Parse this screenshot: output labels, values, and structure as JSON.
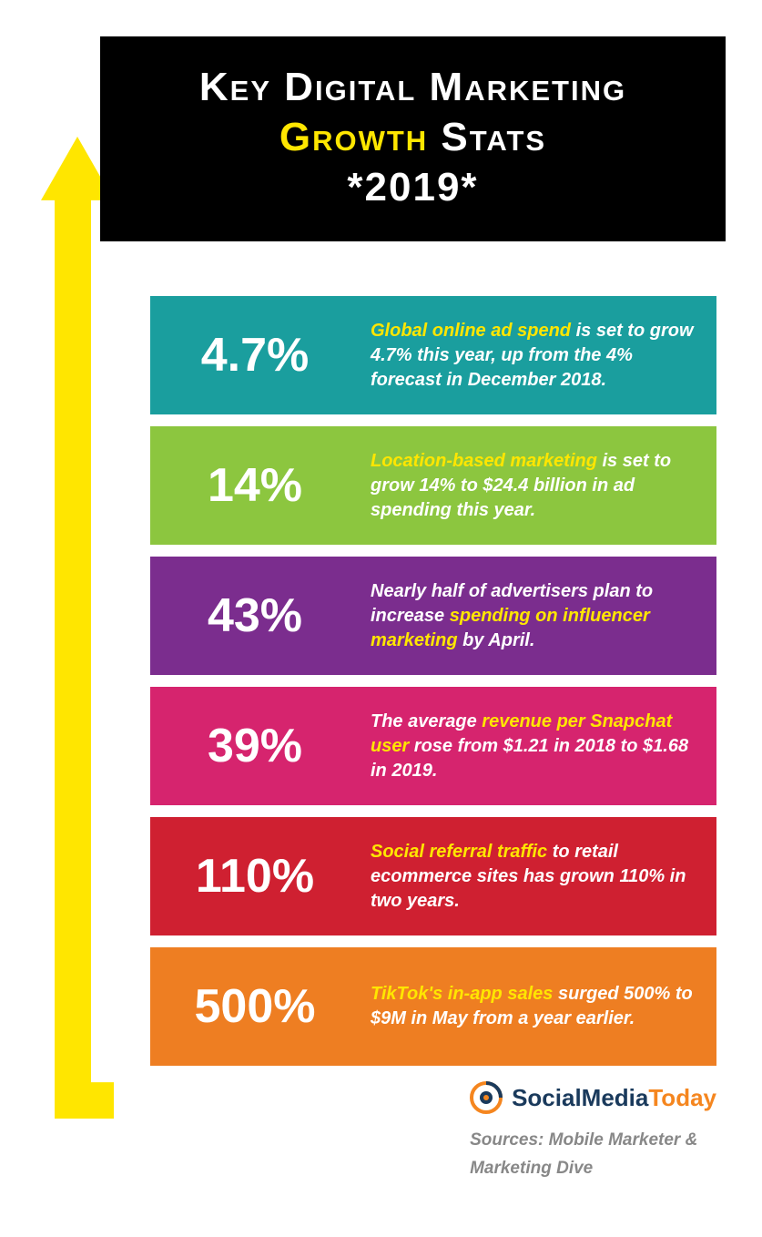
{
  "header": {
    "line1_pre": "Key Digital Marketing",
    "line2_highlight": "Growth",
    "line2_post": " Stats",
    "line3": "*2019*",
    "bg_color": "#000000",
    "text_color": "#ffffff",
    "highlight_color": "#ffe600",
    "font_size": 44
  },
  "arrow": {
    "color": "#ffe600"
  },
  "stats": [
    {
      "percent": "4.7%",
      "desc_pre": "",
      "desc_hl": "Global online ad spend",
      "desc_post": " is set to grow 4.7% this year, up from the 4% forecast in December 2018.",
      "bg_color": "#1a9e9e"
    },
    {
      "percent": "14%",
      "desc_pre": "",
      "desc_hl": "Location-based marketing",
      "desc_post": " is set to grow 14% to $24.4 billion in ad spending this year.",
      "bg_color": "#8cc63f"
    },
    {
      "percent": "43%",
      "desc_pre": "Nearly half of advertisers plan to increase ",
      "desc_hl": "spending on influencer marketing",
      "desc_post": " by April.",
      "bg_color": "#7b2d8e"
    },
    {
      "percent": "39%",
      "desc_pre": "The average ",
      "desc_hl": "revenue per Snapchat user",
      "desc_post": " rose from $1.21 in 2018 to $1.68 in 2019.",
      "bg_color": "#d6246e"
    },
    {
      "percent": "110%",
      "desc_pre": "",
      "desc_hl": "Social referral traffic",
      "desc_post": " to retail ecommerce sites has grown 110% in two years.",
      "bg_color": "#cf2031"
    },
    {
      "percent": "500%",
      "desc_pre": "",
      "desc_hl": "TikTok's in-app sales",
      "desc_post": " surged 500% to $9M in May from a year earlier.",
      "bg_color": "#ee7e22"
    }
  ],
  "stat_style": {
    "percent_fontsize": 52,
    "desc_fontsize": 20,
    "highlight_color": "#ffe600",
    "text_color": "#ffffff",
    "row_gap": 13
  },
  "footer": {
    "brand_navy": "SocialMedia",
    "brand_orange": "Today",
    "brand_navy_color": "#1a3a5c",
    "brand_orange_color": "#f5861f",
    "sources_line1": "Sources: Mobile Marketer &",
    "sources_line2": "Marketing Dive",
    "sources_color": "#888888"
  }
}
